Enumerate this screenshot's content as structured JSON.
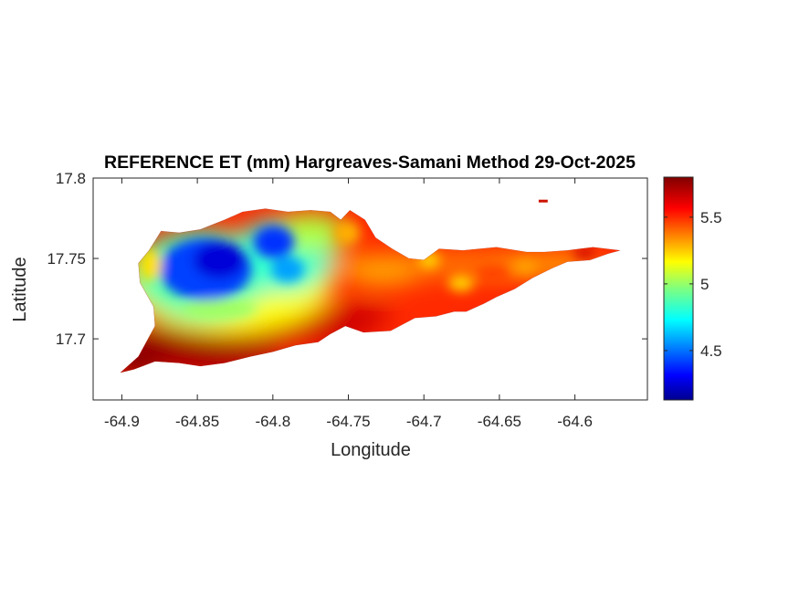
{
  "title": "REFERENCE ET (mm) Hargreaves-Samani Method  29-Oct-2025",
  "xlabel": "Longitude",
  "ylabel": "Latitude",
  "x_ticks": [
    {
      "value": -64.9,
      "label": "-64.9"
    },
    {
      "value": -64.85,
      "label": "-64.85"
    },
    {
      "value": -64.8,
      "label": "-64.8"
    },
    {
      "value": -64.75,
      "label": "-64.75"
    },
    {
      "value": -64.7,
      "label": "-64.7"
    },
    {
      "value": -64.65,
      "label": "-64.65"
    },
    {
      "value": -64.6,
      "label": "-64.6"
    }
  ],
  "y_ticks": [
    {
      "value": 17.7,
      "label": "17.7"
    },
    {
      "value": 17.75,
      "label": "17.75"
    },
    {
      "value": 17.8,
      "label": "17.8"
    }
  ],
  "xlim": [
    -64.919,
    -64.552
  ],
  "ylim": [
    17.662,
    17.8
  ],
  "colorbar": {
    "colormap": "jet",
    "clim": [
      4.13,
      5.8
    ],
    "ticks": [
      {
        "value": 4.5,
        "label": "4.5"
      },
      {
        "value": 5,
        "label": "5"
      },
      {
        "value": 5.5,
        "label": "5.5"
      }
    ]
  },
  "chart_data": {
    "type": "heatmap",
    "title": "REFERENCE ET (mm) Hargreaves-Samani Method  29-Oct-2025",
    "xlabel": "Longitude",
    "ylabel": "Latitude",
    "xlim": [
      -64.919,
      -64.552
    ],
    "ylim": [
      17.662,
      17.8
    ],
    "colorbar_range": [
      4.13,
      5.8
    ],
    "island_outline": [
      [
        -64.901,
        17.679
      ],
      [
        -64.889,
        17.689
      ],
      [
        -64.878,
        17.708
      ],
      [
        -64.879,
        17.72
      ],
      [
        -64.888,
        17.735
      ],
      [
        -64.889,
        17.747
      ],
      [
        -64.882,
        17.755
      ],
      [
        -64.874,
        17.767
      ],
      [
        -64.862,
        17.766
      ],
      [
        -64.848,
        17.768
      ],
      [
        -64.832,
        17.774
      ],
      [
        -64.82,
        17.779
      ],
      [
        -64.805,
        17.781
      ],
      [
        -64.79,
        17.779
      ],
      [
        -64.775,
        17.78
      ],
      [
        -64.762,
        17.779
      ],
      [
        -64.755,
        17.774
      ],
      [
        -64.749,
        17.78
      ],
      [
        -64.739,
        17.774
      ],
      [
        -64.732,
        17.763
      ],
      [
        -64.721,
        17.756
      ],
      [
        -64.71,
        17.75
      ],
      [
        -64.7,
        17.749
      ],
      [
        -64.69,
        17.756
      ],
      [
        -64.674,
        17.755
      ],
      [
        -64.652,
        17.757
      ],
      [
        -64.632,
        17.754
      ],
      [
        -64.62,
        17.754
      ],
      [
        -64.605,
        17.755
      ],
      [
        -64.588,
        17.757
      ],
      [
        -64.57,
        17.755
      ],
      [
        -64.578,
        17.753
      ],
      [
        -64.59,
        17.749
      ],
      [
        -64.605,
        17.748
      ],
      [
        -64.615,
        17.744
      ],
      [
        -64.628,
        17.738
      ],
      [
        -64.64,
        17.731
      ],
      [
        -64.652,
        17.726
      ],
      [
        -64.66,
        17.722
      ],
      [
        -64.672,
        17.717
      ],
      [
        -64.68,
        17.717
      ],
      [
        -64.692,
        17.714
      ],
      [
        -64.706,
        17.713
      ],
      [
        -64.722,
        17.705
      ],
      [
        -64.74,
        17.704
      ],
      [
        -64.752,
        17.708
      ],
      [
        -64.762,
        17.703
      ],
      [
        -64.77,
        17.698
      ],
      [
        -64.785,
        17.696
      ],
      [
        -64.8,
        17.692
      ],
      [
        -64.815,
        17.689
      ],
      [
        -64.832,
        17.685
      ],
      [
        -64.848,
        17.683
      ],
      [
        -64.862,
        17.685
      ],
      [
        -64.878,
        17.686
      ],
      [
        -64.892,
        17.681
      ]
    ],
    "islet": [
      [
        -64.624,
        17.786
      ],
      [
        -64.618,
        17.786
      ]
    ],
    "field_features": [
      {
        "lon": -64.838,
        "lat": 17.745,
        "value": 4.2
      },
      {
        "lon": -64.8,
        "lat": 17.756,
        "value": 4.35
      },
      {
        "lon": -64.858,
        "lat": 17.738,
        "value": 4.5
      },
      {
        "lon": -64.81,
        "lat": 17.735,
        "value": 4.8
      },
      {
        "lon": -64.87,
        "lat": 17.758,
        "value": 4.7
      },
      {
        "lon": -64.77,
        "lat": 17.758,
        "value": 5.05
      },
      {
        "lon": -64.755,
        "lat": 17.745,
        "value": 5.2
      },
      {
        "lon": -64.68,
        "lat": 17.74,
        "value": 5.2
      },
      {
        "lon": -64.62,
        "lat": 17.745,
        "value": 5.3
      },
      {
        "lon": -64.58,
        "lat": 17.754,
        "value": 5.6
      },
      {
        "lon": -64.89,
        "lat": 17.69,
        "value": 5.8
      },
      {
        "lon": -64.845,
        "lat": 17.695,
        "value": 5.75
      },
      {
        "lon": -64.75,
        "lat": 17.712,
        "value": 5.65
      }
    ]
  }
}
